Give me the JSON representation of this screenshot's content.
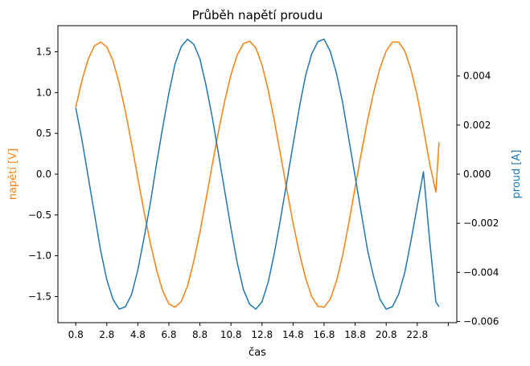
{
  "chart_data": {
    "type": "line",
    "title": "Průběh napětí proudu",
    "xlabel": "čas",
    "ylabel_left": "napětí [V]",
    "ylabel_right": "proud [A]",
    "xlim": [
      -0.35,
      25.35
    ],
    "ylim_left": [
      -1.82,
      1.82
    ],
    "ylim_right": [
      -0.00605,
      0.00605
    ],
    "xticks": [
      0.8,
      2.8,
      4.8,
      6.8,
      8.8,
      10.8,
      12.8,
      14.8,
      16.8,
      18.8,
      20.8,
      22.8,
      24.8
    ],
    "xtick_labels": [
      "0.8",
      "2.8",
      "4.8",
      "6.8",
      "8.8",
      "10.8",
      "12.8",
      "14.8",
      "16.8",
      "18.8",
      "20.8",
      "22.8",
      ""
    ],
    "yticks_left": [
      -1.5,
      -1.0,
      -0.5,
      0.0,
      0.5,
      1.0,
      1.5
    ],
    "ytick_labels_left": [
      "−1.5",
      "−1.0",
      "−0.5",
      "0.0",
      "0.5",
      "1.0",
      "1.5"
    ],
    "yticks_right": [
      -0.006,
      -0.004,
      -0.002,
      0.0,
      0.002,
      0.004
    ],
    "ytick_labels_right": [
      "−0.006",
      "−0.004",
      "−0.002",
      "0.000",
      "0.002",
      "0.004"
    ],
    "grid": false,
    "legend": "none",
    "series": [
      {
        "axis": "left",
        "color": "#ff7f0e",
        "x": [
          0.8,
          1.2,
          1.6,
          2.0,
          2.4,
          2.8,
          3.2,
          3.6,
          4.0,
          4.4,
          4.8,
          5.2,
          5.6,
          6.0,
          6.4,
          6.8,
          7.2,
          7.6,
          8.0,
          8.4,
          8.8,
          9.2,
          9.6,
          10.0,
          10.4,
          10.8,
          11.2,
          11.6,
          12.0,
          12.4,
          12.8,
          13.2,
          13.6,
          14.0,
          14.4,
          14.8,
          15.2,
          15.6,
          16.0,
          16.4,
          16.8,
          17.2,
          17.6,
          18.0,
          18.4,
          18.8,
          19.2,
          19.6,
          20.0,
          20.4,
          20.8,
          21.2,
          21.6,
          22.0,
          22.4,
          22.8,
          23.2,
          23.6,
          24.0,
          24.2
        ],
        "y": [
          0.82,
          1.15,
          1.41,
          1.57,
          1.62,
          1.56,
          1.39,
          1.11,
          0.77,
          0.37,
          -0.05,
          -0.46,
          -0.84,
          -1.17,
          -1.43,
          -1.59,
          -1.63,
          -1.56,
          -1.37,
          -1.07,
          -0.71,
          -0.3,
          0.12,
          0.53,
          0.9,
          1.22,
          1.46,
          1.6,
          1.63,
          1.55,
          1.34,
          1.03,
          0.65,
          0.23,
          -0.19,
          -0.6,
          -0.96,
          -1.27,
          -1.5,
          -1.62,
          -1.63,
          -1.53,
          -1.31,
          -0.99,
          -0.59,
          -0.16,
          0.26,
          0.66,
          1.01,
          1.3,
          1.51,
          1.62,
          1.62,
          1.51,
          1.28,
          0.96,
          0.56,
          0.13,
          -0.22,
          0.39
        ]
      },
      {
        "axis": "right",
        "color": "#1f77b4",
        "x": [
          0.8,
          1.2,
          1.6,
          2.0,
          2.4,
          2.8,
          3.2,
          3.6,
          4.0,
          4.4,
          4.8,
          5.2,
          5.6,
          6.0,
          6.4,
          6.8,
          7.2,
          7.6,
          8.0,
          8.4,
          8.8,
          9.2,
          9.6,
          10.0,
          10.4,
          10.8,
          11.2,
          11.6,
          12.0,
          12.4,
          12.8,
          13.2,
          13.6,
          14.0,
          14.4,
          14.8,
          15.2,
          15.6,
          16.0,
          16.4,
          16.8,
          17.2,
          17.6,
          18.0,
          18.4,
          18.8,
          19.2,
          19.6,
          20.0,
          20.4,
          20.8,
          21.2,
          21.6,
          22.0,
          22.4,
          22.8,
          23.2,
          23.6,
          24.0,
          24.2
        ],
        "y": [
          0.0027,
          0.0014,
          -0.0001,
          -0.0016,
          -0.0031,
          -0.0043,
          -0.0051,
          -0.0055,
          -0.0054,
          -0.0049,
          -0.0039,
          -0.0026,
          -0.0012,
          0.0004,
          0.0019,
          0.0033,
          0.0045,
          0.0052,
          0.0055,
          0.0053,
          0.0047,
          0.0036,
          0.0023,
          0.0008,
          -0.0007,
          -0.0022,
          -0.0036,
          -0.0047,
          -0.0053,
          -0.0055,
          -0.0052,
          -0.0044,
          -0.0032,
          -0.0018,
          -0.0003,
          0.0012,
          0.0027,
          0.004,
          0.0049,
          0.0054,
          0.0055,
          0.005,
          0.0041,
          0.0029,
          0.0014,
          -0.0001,
          -0.0016,
          -0.0031,
          -0.0042,
          -0.0051,
          -0.0055,
          -0.0054,
          -0.0049,
          -0.004,
          -0.0027,
          -0.0013,
          0.0001,
          -0.0027,
          -0.0052,
          -0.0054
        ]
      }
    ]
  }
}
